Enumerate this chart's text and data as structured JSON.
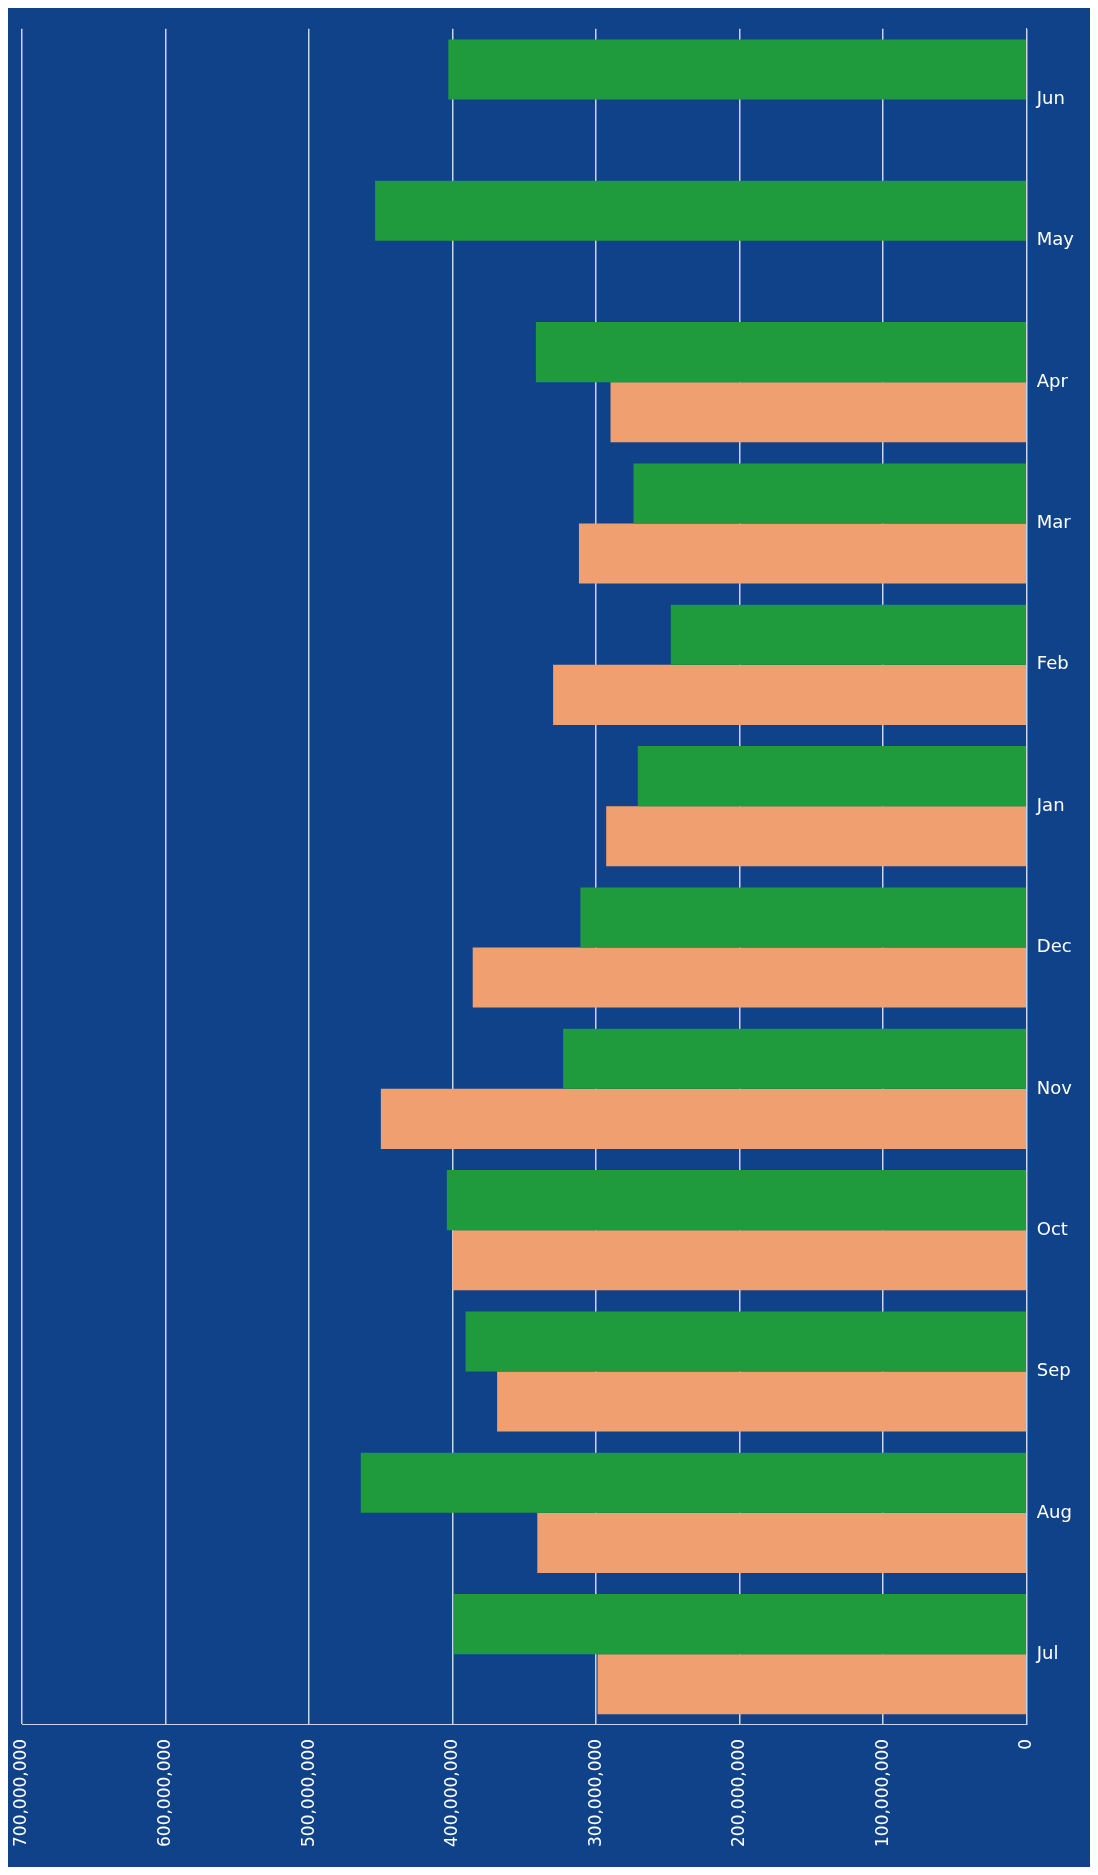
{
  "chart_data": {
    "type": "bar",
    "orientation": "horizontal",
    "categories": [
      "Jun",
      "May",
      "Apr",
      "Mar",
      "Feb",
      "Jan",
      "Dec",
      "Nov",
      "Oct",
      "Sep",
      "Aug",
      "Jul"
    ],
    "series": [
      {
        "color": "#1f9a3c",
        "values": [
          403000000,
          454000000,
          342000000,
          274000000,
          248000000,
          271000000,
          311000000,
          323000000,
          404000000,
          391000000,
          464000000,
          399000000
        ]
      },
      {
        "color": "#f0a070",
        "values": [
          null,
          null,
          290000000,
          312000000,
          330000000,
          293000000,
          386000000,
          450000000,
          400000000,
          369000000,
          341000000,
          299000000
        ]
      }
    ],
    "xlim": [
      700000000,
      0
    ],
    "xticks": [
      {
        "value": 700000000,
        "label": "700,000,000"
      },
      {
        "value": 600000000,
        "label": "600,000,000"
      },
      {
        "value": 500000000,
        "label": "500,000,000"
      },
      {
        "value": 400000000,
        "label": "400,000,000"
      },
      {
        "value": 300000000,
        "label": "300,000,000"
      },
      {
        "value": 200000000,
        "label": "200,000,000"
      },
      {
        "value": 100000000,
        "label": "100,000,000"
      },
      0
    ],
    "grid": "x",
    "legend": false
  }
}
